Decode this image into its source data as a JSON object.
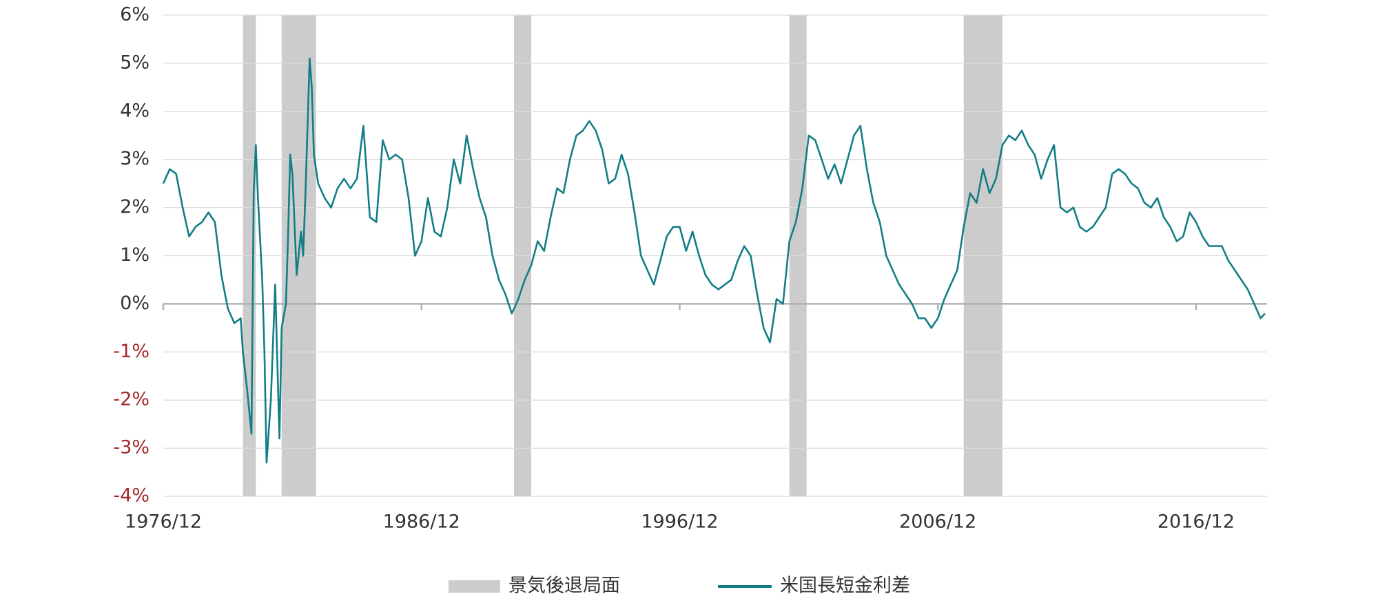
{
  "chart_data": {
    "type": "line",
    "x": [
      "1976/12",
      "1977/03",
      "1977/06",
      "1977/09",
      "1977/12",
      "1978/03",
      "1978/06",
      "1978/09",
      "1978/12",
      "1979/03",
      "1979/06",
      "1979/09",
      "1979/12",
      "1980/01",
      "1980/03",
      "1980/05",
      "1980/06",
      "1980/07",
      "1980/08",
      "1980/10",
      "1980/11",
      "1980/12",
      "1981/02",
      "1981/04",
      "1981/06",
      "1981/07",
      "1981/09",
      "1981/10",
      "1981/11",
      "1981/12",
      "1982/02",
      "1982/04",
      "1982/05",
      "1982/06",
      "1982/07",
      "1982/08",
      "1982/09",
      "1982/10",
      "1982/12",
      "1983/03",
      "1983/06",
      "1983/09",
      "1983/12",
      "1984/03",
      "1984/06",
      "1984/09",
      "1984/12",
      "1985/03",
      "1985/06",
      "1985/09",
      "1985/12",
      "1986/03",
      "1986/06",
      "1986/09",
      "1986/12",
      "1987/03",
      "1987/06",
      "1987/09",
      "1987/12",
      "1988/03",
      "1988/06",
      "1988/09",
      "1988/12",
      "1989/03",
      "1989/06",
      "1989/09",
      "1989/12",
      "1990/03",
      "1990/06",
      "1990/09",
      "1990/12",
      "1991/03",
      "1991/06",
      "1991/09",
      "1991/12",
      "1992/03",
      "1992/06",
      "1992/09",
      "1992/12",
      "1993/03",
      "1993/06",
      "1993/09",
      "1993/12",
      "1994/03",
      "1994/06",
      "1994/09",
      "1994/12",
      "1995/03",
      "1995/06",
      "1995/09",
      "1995/12",
      "1996/03",
      "1996/06",
      "1996/09",
      "1996/12",
      "1997/03",
      "1997/06",
      "1997/09",
      "1997/12",
      "1998/03",
      "1998/06",
      "1998/09",
      "1998/12",
      "1999/03",
      "1999/06",
      "1999/09",
      "1999/12",
      "2000/03",
      "2000/06",
      "2000/09",
      "2000/12",
      "2001/03",
      "2001/06",
      "2001/09",
      "2001/12",
      "2002/03",
      "2002/06",
      "2002/09",
      "2002/12",
      "2003/03",
      "2003/06",
      "2003/09",
      "2003/12",
      "2004/03",
      "2004/06",
      "2004/09",
      "2004/12",
      "2005/03",
      "2005/06",
      "2005/09",
      "2005/12",
      "2006/03",
      "2006/06",
      "2006/09",
      "2006/12",
      "2007/03",
      "2007/06",
      "2007/09",
      "2007/12",
      "2008/03",
      "2008/06",
      "2008/09",
      "2008/12",
      "2009/03",
      "2009/06",
      "2009/09",
      "2009/12",
      "2010/03",
      "2010/06",
      "2010/09",
      "2010/12",
      "2011/03",
      "2011/06",
      "2011/09",
      "2011/12",
      "2012/03",
      "2012/06",
      "2012/09",
      "2012/12",
      "2013/03",
      "2013/06",
      "2013/09",
      "2013/12",
      "2014/03",
      "2014/06",
      "2014/09",
      "2014/12",
      "2015/03",
      "2015/06",
      "2015/09",
      "2015/12",
      "2016/03",
      "2016/06",
      "2016/09",
      "2016/12",
      "2017/03",
      "2017/06",
      "2017/09",
      "2017/12",
      "2018/03",
      "2018/06",
      "2018/09",
      "2018/12",
      "2019/03",
      "2019/06",
      "2019/08"
    ],
    "series": [
      {
        "name": "米国長短金利差",
        "color": "#137d86",
        "values": [
          2.5,
          2.8,
          2.7,
          2.0,
          1.4,
          1.6,
          1.7,
          1.9,
          1.7,
          0.6,
          -0.1,
          -0.4,
          -0.3,
          -1.0,
          -1.8,
          -2.7,
          2.3,
          3.3,
          2.2,
          0.5,
          -1.0,
          -3.3,
          -2.0,
          0.4,
          -2.8,
          -0.5,
          0.0,
          1.4,
          3.1,
          2.7,
          0.6,
          1.5,
          1.0,
          2.2,
          3.6,
          5.1,
          4.5,
          3.1,
          2.5,
          2.2,
          2.0,
          2.4,
          2.6,
          2.4,
          2.6,
          3.7,
          1.8,
          1.7,
          3.4,
          3.0,
          3.1,
          3.0,
          2.2,
          1.0,
          1.3,
          2.2,
          1.5,
          1.4,
          2.0,
          3.0,
          2.5,
          3.5,
          2.8,
          2.2,
          1.8,
          1.0,
          0.5,
          0.2,
          -0.2,
          0.1,
          0.5,
          0.8,
          1.3,
          1.1,
          1.8,
          2.4,
          2.3,
          3.0,
          3.5,
          3.6,
          3.8,
          3.6,
          3.2,
          2.5,
          2.6,
          3.1,
          2.7,
          1.9,
          1.0,
          0.7,
          0.4,
          0.9,
          1.4,
          1.6,
          1.6,
          1.1,
          1.5,
          1.0,
          0.6,
          0.4,
          0.3,
          0.4,
          0.5,
          0.9,
          1.2,
          1.0,
          0.2,
          -0.5,
          -0.8,
          0.1,
          0.0,
          1.3,
          1.7,
          2.4,
          3.5,
          3.4,
          3.0,
          2.6,
          2.9,
          2.5,
          3.0,
          3.5,
          3.7,
          2.8,
          2.1,
          1.7,
          1.0,
          0.7,
          0.4,
          0.2,
          0.0,
          -0.3,
          -0.3,
          -0.5,
          -0.3,
          0.1,
          0.4,
          0.7,
          1.6,
          2.3,
          2.1,
          2.8,
          2.3,
          2.6,
          3.3,
          3.5,
          3.4,
          3.6,
          3.3,
          3.1,
          2.6,
          3.0,
          3.3,
          2.0,
          1.9,
          2.0,
          1.6,
          1.5,
          1.6,
          1.8,
          2.0,
          2.7,
          2.8,
          2.7,
          2.5,
          2.4,
          2.1,
          2.0,
          2.2,
          1.8,
          1.6,
          1.3,
          1.4,
          1.9,
          1.7,
          1.4,
          1.2,
          1.2,
          1.2,
          0.9,
          0.7,
          0.5,
          0.3,
          0.0,
          -0.3,
          -0.2
        ]
      }
    ],
    "shaded": {
      "name": "景気後退局面",
      "color": "#cccccc",
      "periods": [
        [
          "1980/01",
          "1980/07"
        ],
        [
          "1981/07",
          "1982/11"
        ],
        [
          "1990/07",
          "1991/03"
        ],
        [
          "2001/03",
          "2001/11"
        ],
        [
          "2007/12",
          "2009/06"
        ]
      ]
    },
    "xlim": [
      "1976/12",
      "2019/09"
    ],
    "xticks": [
      "1976/12",
      "1986/12",
      "1996/12",
      "2006/12",
      "2016/12"
    ],
    "ylim": [
      -4,
      6
    ],
    "yticks": [
      {
        "value": -4,
        "label": "-4%"
      },
      {
        "value": -3,
        "label": "-3%"
      },
      {
        "value": -2,
        "label": "-2%"
      },
      {
        "value": -1,
        "label": "-1%"
      },
      {
        "value": 0,
        "label": "0%"
      },
      {
        "value": 1,
        "label": "1%"
      },
      {
        "value": 2,
        "label": "2%"
      },
      {
        "value": 3,
        "label": "3%"
      },
      {
        "value": 4,
        "label": "4%"
      },
      {
        "value": 5,
        "label": "5%"
      },
      {
        "value": 6,
        "label": "6%"
      }
    ],
    "negative_tick_color": "#a3282a",
    "grid": true
  }
}
